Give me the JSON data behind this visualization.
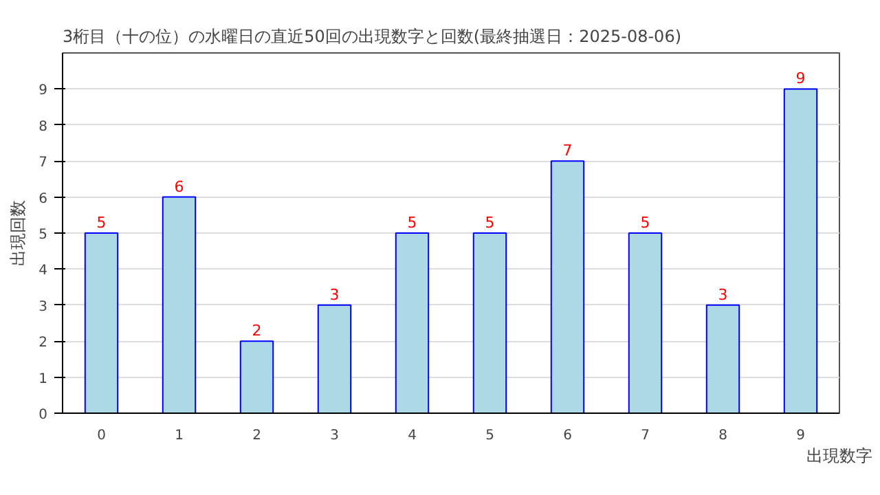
{
  "chart_data": {
    "type": "bar",
    "title": "3桁目（十の位）の水曜日の直近50回の出現数字と回数(最終抽選日：2025-08-06)",
    "xlabel": "出現数字",
    "ylabel": "出現回数",
    "categories": [
      "0",
      "1",
      "2",
      "3",
      "4",
      "5",
      "6",
      "7",
      "8",
      "9"
    ],
    "values": [
      5,
      6,
      2,
      3,
      5,
      5,
      7,
      5,
      3,
      9
    ],
    "color": "#add8e6",
    "ylim": [
      0,
      10
    ],
    "yticks": [
      0,
      1,
      2,
      3,
      4,
      5,
      6,
      7,
      8,
      9
    ],
    "grid": "y",
    "data_labels": true
  }
}
